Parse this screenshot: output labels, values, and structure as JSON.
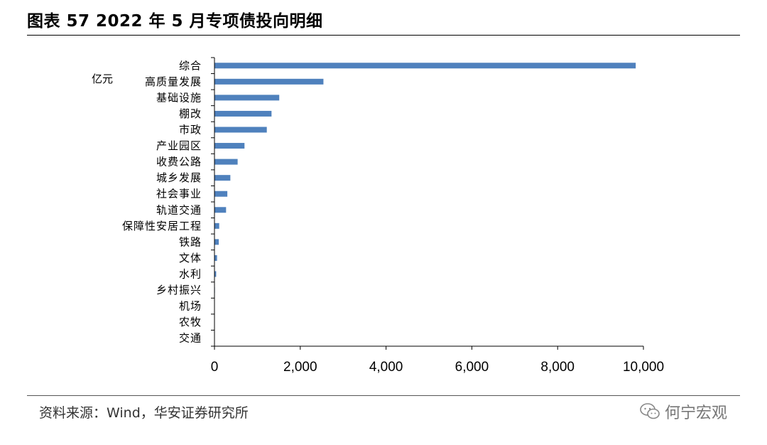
{
  "header": {
    "title": "图表 57 2022 年 5 月专项债投向明细"
  },
  "chart_data": {
    "type": "bar",
    "orientation": "horizontal",
    "title": "图表 57 2022 年 5 月专项债投向明细",
    "unit_label": "亿元",
    "categories": [
      "综合",
      "高质量发展",
      "基础设施",
      "棚改",
      "市政",
      "产业园区",
      "收费公路",
      "城乡发展",
      "社会事业",
      "轨道交通",
      "保障性安居工程",
      "铁路",
      "文体",
      "水利",
      "乡村振兴",
      "机场",
      "农牧",
      "交通"
    ],
    "values": [
      9820,
      2540,
      1510,
      1330,
      1220,
      700,
      540,
      370,
      300,
      270,
      110,
      100,
      60,
      40,
      10,
      5,
      3,
      2
    ],
    "xlim": [
      0,
      10000
    ],
    "xticks": [
      0,
      2000,
      4000,
      6000,
      8000,
      10000
    ],
    "xtick_labels": [
      "0",
      "2,000",
      "4,000",
      "6,000",
      "8,000",
      "10,000"
    ],
    "grid": false,
    "bar_color": "#4f81bd"
  },
  "footer": {
    "source": "资料来源：Wind，华安证券研究所",
    "watermark": "何宁宏观",
    "watermark_icon": "wechat-icon"
  }
}
